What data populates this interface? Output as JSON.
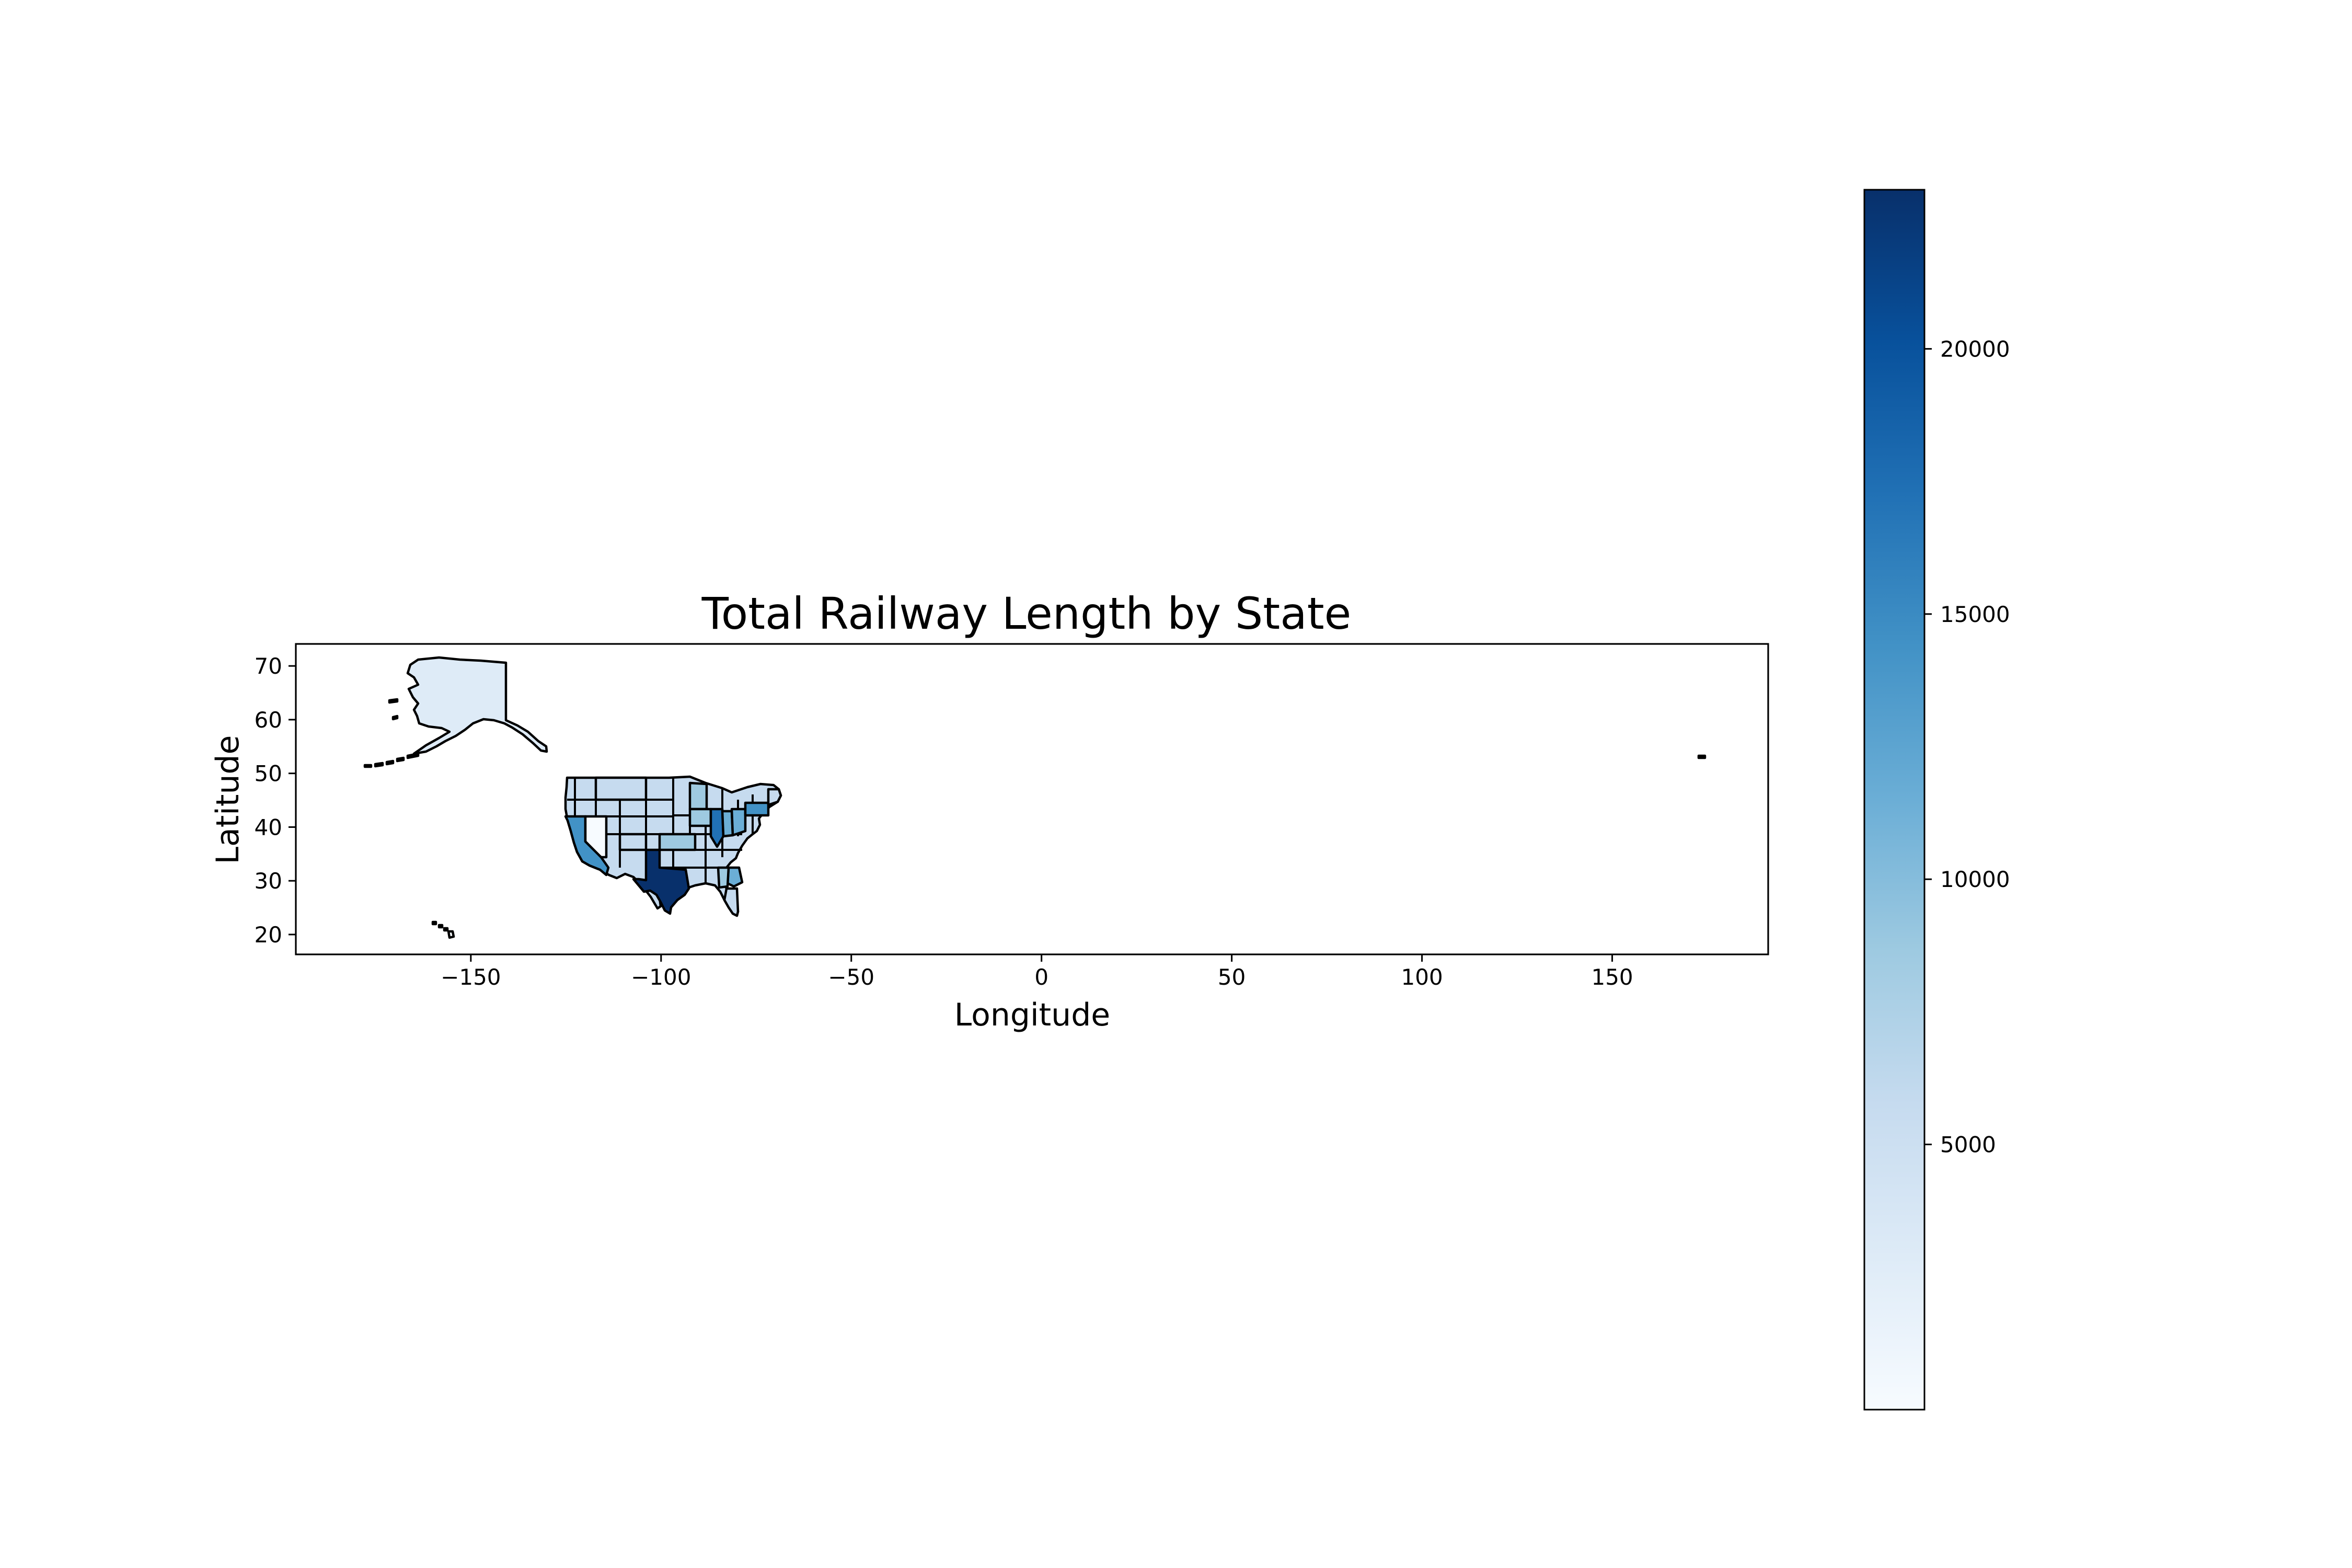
{
  "chart_data": {
    "type": "choropleth",
    "title": "Total Railway Length by State",
    "xlabel": "Longitude",
    "ylabel": "Latitude",
    "xlim": [
      -196,
      191
    ],
    "ylim": [
      16.3,
      74.1
    ],
    "xticks": [
      -150,
      -100,
      -50,
      0,
      50,
      100,
      150
    ],
    "yticks": [
      20,
      30,
      40,
      50,
      60,
      70
    ],
    "xtick_labels": [
      "−150",
      "−100",
      "−50",
      "0",
      "50",
      "100",
      "150"
    ],
    "ytick_labels": [
      "20",
      "30",
      "40",
      "50",
      "60",
      "70"
    ],
    "grid": false,
    "colormap": "Blues",
    "colorbar": {
      "orientation": "vertical",
      "position": "right",
      "min": 0,
      "max": 23000,
      "ticks": [
        5000,
        10000,
        15000,
        20000
      ],
      "tick_labels": [
        "5000",
        "10000",
        "15000",
        "20000"
      ],
      "colors": [
        "#f7fbff",
        "#deebf7",
        "#c6dbef",
        "#9ecae1",
        "#6baed6",
        "#4292c6",
        "#2171b5",
        "#08519c",
        "#08306b"
      ]
    },
    "regions": [
      {
        "name": "Texas",
        "value": 23000
      },
      {
        "name": "California",
        "value": 14000
      },
      {
        "name": "Illinois",
        "value": 13000
      },
      {
        "name": "Pennsylvania",
        "value": 12500
      },
      {
        "name": "Ohio",
        "value": 11000
      },
      {
        "name": "Minnesota",
        "value": 9500
      },
      {
        "name": "Kansas",
        "value": 9000
      },
      {
        "name": "Indiana",
        "value": 8500
      },
      {
        "name": "Iowa",
        "value": 8000
      },
      {
        "name": "Georgia",
        "value": 7500
      },
      {
        "name": "Alabama",
        "value": 6500
      },
      {
        "name": "Alaska",
        "value": 3000
      },
      {
        "name": "Nevada",
        "value": 2500
      },
      {
        "name": "Hawaii",
        "value": 200
      }
    ]
  }
}
